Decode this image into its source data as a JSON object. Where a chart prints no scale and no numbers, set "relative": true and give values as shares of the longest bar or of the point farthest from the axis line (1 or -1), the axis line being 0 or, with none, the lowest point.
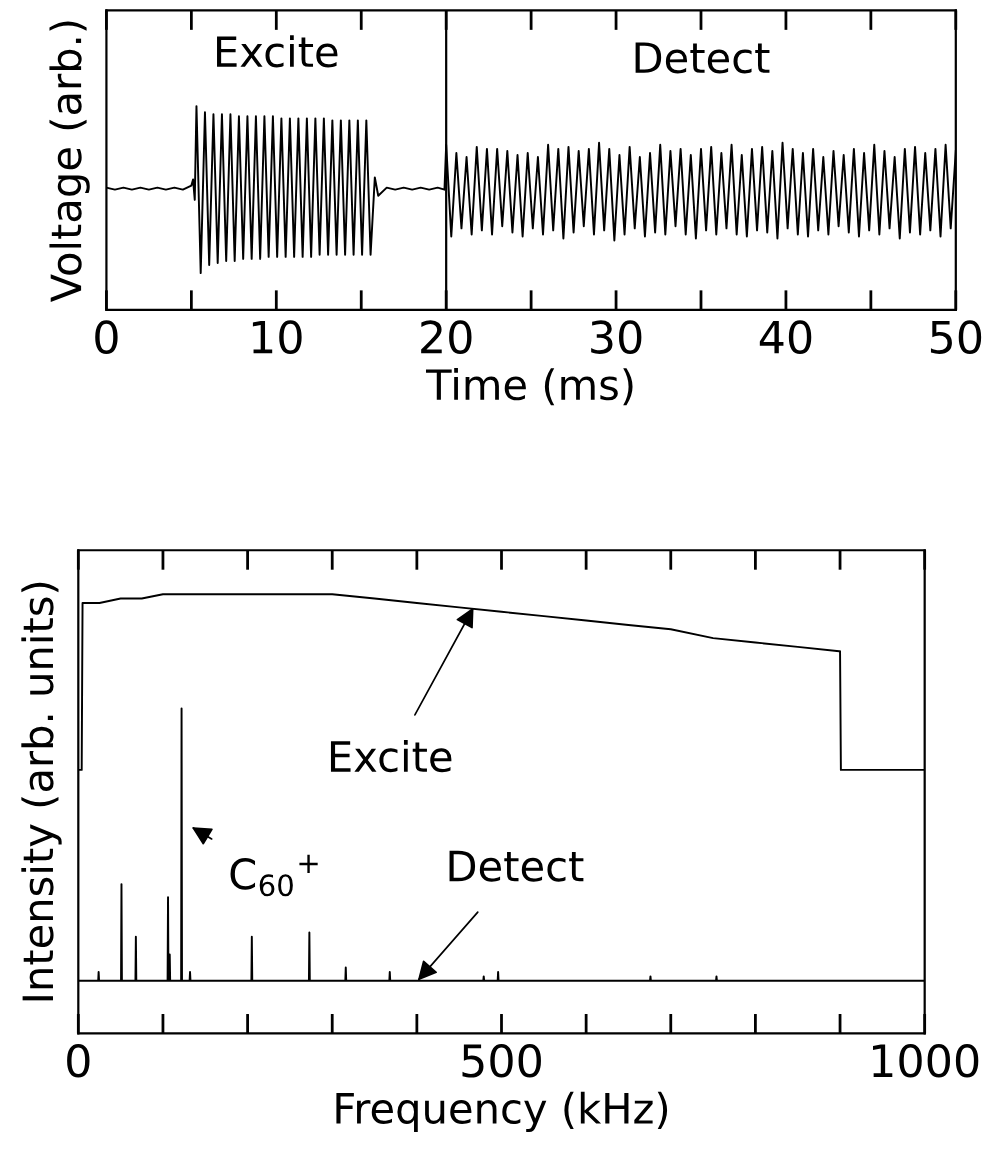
{
  "chart_data": [
    {
      "type": "line",
      "relative": true,
      "xlabel": "Time (ms)",
      "ylabel": "Voltage (arb.)",
      "tick_labels": "x",
      "grid": false,
      "legend": false,
      "xlim": [
        0,
        50
      ],
      "xticks": [
        0,
        {
          "value": 5,
          "label": null
        },
        10,
        {
          "value": 15,
          "label": null
        },
        20,
        {
          "value": 25,
          "label": null
        },
        30,
        {
          "value": 35,
          "label": null
        },
        40,
        {
          "value": 45,
          "label": null
        },
        50
      ],
      "ref_lines": [
        {
          "axis": "x",
          "value": 20,
          "color": "#000000"
        }
      ],
      "annotations": [
        "Excite",
        "Detect"
      ],
      "series": [
        {
          "color": "#000000",
          "x": [
            0,
            0.5,
            1,
            1.5,
            2,
            2.5,
            3,
            3.5,
            4,
            4.5,
            5.0,
            5.1,
            5.2,
            5.3,
            5.55,
            5.8,
            6.05,
            6.3,
            6.55,
            6.8,
            7.05,
            7.3,
            7.55,
            7.8,
            8.05,
            8.3,
            8.55,
            8.8,
            9.05,
            9.3,
            9.55,
            9.8,
            10.05,
            10.3,
            10.55,
            10.8,
            11.05,
            11.3,
            11.55,
            11.8,
            12.05,
            12.3,
            12.55,
            12.8,
            13.05,
            13.3,
            13.55,
            13.8,
            14.05,
            14.3,
            14.55,
            14.8,
            15.05,
            15.3,
            15.55,
            15.8,
            16.0,
            16.5,
            17,
            17.5,
            18,
            18.5,
            19,
            19.5,
            19.9,
            20.0,
            20.3,
            20.6,
            20.9,
            21.2,
            21.5,
            21.8,
            22.1,
            22.4,
            22.7,
            23.0,
            23.3,
            23.6,
            23.9,
            24.2,
            24.5,
            24.8,
            25.1,
            25.4,
            25.7,
            26.0,
            26.3,
            26.6,
            26.9,
            27.2,
            27.5,
            27.8,
            28.1,
            28.4,
            28.7,
            29.0,
            29.3,
            29.6,
            29.9,
            30.2,
            30.5,
            30.8,
            31.1,
            31.4,
            31.7,
            32.0,
            32.3,
            32.6,
            32.9,
            33.2,
            33.5,
            33.8,
            34.1,
            34.4,
            34.7,
            35.0,
            35.3,
            35.6,
            35.9,
            36.2,
            36.5,
            36.8,
            37.1,
            37.4,
            37.7,
            38.0,
            38.3,
            38.6,
            38.9,
            39.2,
            39.5,
            39.8,
            40.1,
            40.4,
            40.7,
            41.0,
            41.3,
            41.6,
            41.9,
            42.2,
            42.5,
            42.8,
            43.1,
            43.4,
            43.7,
            44.0,
            44.3,
            44.6,
            44.9,
            45.2,
            45.5,
            45.8,
            46.1,
            46.4,
            46.7,
            47.0,
            47.3,
            47.6,
            47.9,
            48.2,
            48.5,
            48.8,
            49.1,
            49.4,
            49.7,
            50.0
          ],
          "values": [
            0.6,
            0.59,
            0.6,
            0.59,
            0.6,
            0.59,
            0.6,
            0.59,
            0.6,
            0.59,
            0.61,
            0.64,
            0.54,
            1.0,
            0.18,
            0.97,
            0.22,
            0.96,
            0.23,
            0.96,
            0.24,
            0.96,
            0.24,
            0.95,
            0.25,
            0.95,
            0.25,
            0.95,
            0.25,
            0.95,
            0.26,
            0.95,
            0.26,
            0.94,
            0.26,
            0.94,
            0.26,
            0.94,
            0.26,
            0.94,
            0.26,
            0.94,
            0.27,
            0.94,
            0.27,
            0.93,
            0.27,
            0.93,
            0.27,
            0.93,
            0.27,
            0.93,
            0.27,
            0.93,
            0.27,
            0.65,
            0.56,
            0.6,
            0.59,
            0.6,
            0.59,
            0.6,
            0.59,
            0.6,
            0.59,
            0.81,
            0.36,
            0.77,
            0.4,
            0.75,
            0.37,
            0.8,
            0.39,
            0.79,
            0.37,
            0.79,
            0.41,
            0.78,
            0.38,
            0.76,
            0.36,
            0.77,
            0.4,
            0.75,
            0.37,
            0.81,
            0.39,
            0.79,
            0.35,
            0.8,
            0.38,
            0.78,
            0.41,
            0.79,
            0.37,
            0.82,
            0.39,
            0.79,
            0.34,
            0.76,
            0.37,
            0.8,
            0.4,
            0.75,
            0.36,
            0.77,
            0.38,
            0.81,
            0.37,
            0.78,
            0.41,
            0.79,
            0.37,
            0.76,
            0.35,
            0.79,
            0.39,
            0.8,
            0.37,
            0.77,
            0.4,
            0.81,
            0.37,
            0.76,
            0.36,
            0.79,
            0.39,
            0.8,
            0.38,
            0.78,
            0.35,
            0.82,
            0.4,
            0.79,
            0.37,
            0.77,
            0.36,
            0.79,
            0.39,
            0.75,
            0.37,
            0.78,
            0.41,
            0.76,
            0.38,
            0.79,
            0.36,
            0.77,
            0.39,
            0.81,
            0.37,
            0.78,
            0.4,
            0.75,
            0.35,
            0.79,
            0.38,
            0.8,
            0.37,
            0.77,
            0.39,
            0.79,
            0.36,
            0.81,
            0.4,
            0.78
          ]
        }
      ]
    },
    {
      "type": "line",
      "relative": true,
      "xlabel": "Frequency (kHz)",
      "ylabel": "Intensity (arb. units)",
      "tick_labels": "x",
      "grid": false,
      "legend": false,
      "xlim": [
        0,
        1000
      ],
      "xticks": [
        0,
        {
          "value": 100,
          "label": null
        },
        {
          "value": 200,
          "label": null
        },
        {
          "value": 300,
          "label": null
        },
        {
          "value": 400,
          "label": null
        },
        500,
        {
          "value": 600,
          "label": null
        },
        {
          "value": 700,
          "label": null
        },
        {
          "value": 800,
          "label": null
        },
        {
          "value": 900,
          "label": null
        },
        1000
      ],
      "annotations": [
        {
          "text": "Excite",
          "x": 467,
          "y": 0.97
        },
        {
          "text": "C$_{60}$$^{+}$",
          "x": 134,
          "y": 0.47
        },
        {
          "text": "Detect",
          "x": 401,
          "y": 0.12
        }
      ],
      "series": [
        {
          "color": "#000000",
          "x": [
            0,
            4,
            5,
            25,
            50,
            75,
            100,
            150,
            200,
            250,
            300,
            350,
            400,
            450,
            500,
            550,
            600,
            650,
            700,
            750,
            800,
            850,
            899,
            900,
            901,
            950,
            1000
          ],
          "values": [
            0.6,
            0.6,
            0.98,
            0.98,
            0.99,
            0.99,
            1.0,
            1.0,
            1.0,
            1.0,
            1.0,
            0.99,
            0.98,
            0.97,
            0.96,
            0.95,
            0.94,
            0.93,
            0.92,
            0.9,
            0.89,
            0.88,
            0.87,
            0.87,
            0.6,
            0.6,
            0.6
          ]
        },
        {
          "color": "#000000",
          "x": [
            0,
            23.5,
            24,
            24.5,
            50.5,
            51,
            51.5,
            67.5,
            68,
            68.5,
            105.5,
            106,
            106.5,
            107.5,
            108,
            108.5,
            121.5,
            122,
            122.5,
            131.5,
            132,
            132.5,
            204.5,
            205,
            205.5,
            272.5,
            273,
            273.5,
            315.5,
            316,
            316.5,
            367.5,
            368,
            368.5,
            478.5,
            479,
            479.5,
            495.5,
            496,
            496.5,
            675.5,
            676,
            676.5,
            753.5,
            754,
            754.5,
            1000
          ],
          "values": [
            0.12,
            0.12,
            0.14,
            0.12,
            0.12,
            0.34,
            0.12,
            0.12,
            0.22,
            0.12,
            0.12,
            0.31,
            0.12,
            0.12,
            0.18,
            0.12,
            0.12,
            0.74,
            0.12,
            0.12,
            0.14,
            0.12,
            0.12,
            0.22,
            0.12,
            0.12,
            0.23,
            0.12,
            0.12,
            0.15,
            0.12,
            0.12,
            0.14,
            0.12,
            0.12,
            0.13,
            0.12,
            0.12,
            0.14,
            0.12,
            0.12,
            0.13,
            0.12,
            0.12,
            0.13,
            0.12,
            0.12
          ]
        }
      ]
    }
  ]
}
